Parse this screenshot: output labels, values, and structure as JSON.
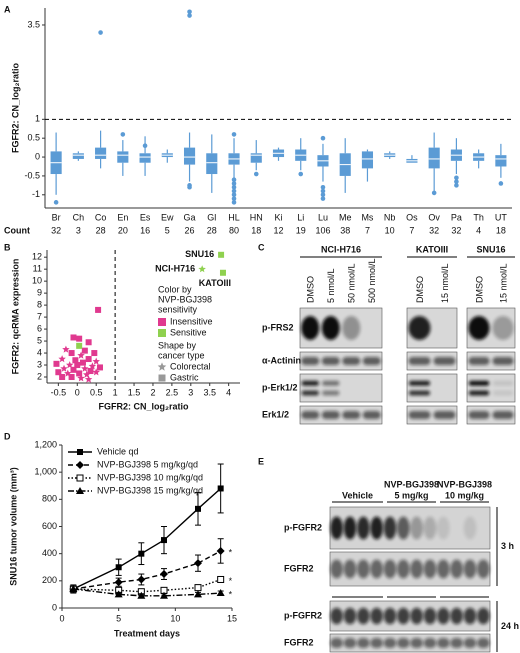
{
  "chart_data": [
    {
      "panel": "A",
      "type": "box",
      "ylabel": "FGFR2: CN_log₂ratio",
      "color": "#5b9bd5",
      "categories": [
        "Br",
        "Ch",
        "Co",
        "En",
        "Es",
        "Ew",
        "Ga",
        "Gl",
        "HL",
        "HN",
        "Ki",
        "Li",
        "Lu",
        "Me",
        "Ms",
        "Nb",
        "Os",
        "Ov",
        "Pa",
        "Th",
        "UT"
      ],
      "count_label": "Count",
      "counts": [
        32,
        3,
        28,
        20,
        16,
        5,
        26,
        28,
        80,
        18,
        12,
        19,
        106,
        38,
        7,
        10,
        7,
        32,
        32,
        4,
        18
      ],
      "boxes": [
        {
          "low": -1.0,
          "q1": -0.45,
          "median": -0.15,
          "q3": 0.15,
          "high": 0.65,
          "outliers": [
            -1.2
          ]
        },
        {
          "low": -0.1,
          "q1": -0.05,
          "median": 0.05,
          "q3": 0.1,
          "high": 0.15,
          "outliers": []
        },
        {
          "low": -0.3,
          "q1": -0.05,
          "median": 0.05,
          "q3": 0.25,
          "high": 0.7,
          "outliers": [
            3.3
          ]
        },
        {
          "low": -0.5,
          "q1": -0.15,
          "median": 0.05,
          "q3": 0.15,
          "high": 0.45,
          "outliers": [
            0.6
          ]
        },
        {
          "low": -0.5,
          "q1": -0.15,
          "median": 0,
          "q3": 0.1,
          "high": 0.55,
          "outliers": [
            0.3
          ]
        },
        {
          "low": -0.15,
          "q1": 0,
          "median": 0.05,
          "q3": 0.1,
          "high": 0.2,
          "outliers": []
        },
        {
          "low": -0.65,
          "q1": -0.2,
          "median": 0,
          "q3": 0.25,
          "high": 0.65,
          "outliers": [
            3.75,
            3.85,
            -0.75,
            -0.8
          ]
        },
        {
          "low": -0.95,
          "q1": -0.45,
          "median": -0.15,
          "q3": 0.1,
          "high": 0.6,
          "outliers": []
        },
        {
          "low": -0.55,
          "q1": -0.2,
          "median": -0.05,
          "q3": 0.1,
          "high": 0.5,
          "outliers": [
            -0.6,
            -0.7,
            -0.8,
            -0.9,
            -1.0,
            -1.1,
            -1.2,
            0.6
          ]
        },
        {
          "low": -0.35,
          "q1": -0.15,
          "median": 0.05,
          "q3": 0.1,
          "high": 0.45,
          "outliers": [
            -0.45
          ]
        },
        {
          "low": -0.1,
          "q1": 0,
          "median": 0.1,
          "q3": 0.2,
          "high": 0.25,
          "outliers": []
        },
        {
          "low": -0.35,
          "q1": -0.1,
          "median": 0.05,
          "q3": 0.2,
          "high": 0.5,
          "outliers": [
            -0.45
          ]
        },
        {
          "low": -0.65,
          "q1": -0.25,
          "median": -0.1,
          "q3": 0.05,
          "high": 0.35,
          "outliers": [
            -0.8,
            -0.9,
            -1.0,
            -1.1,
            0.5
          ]
        },
        {
          "low": -0.95,
          "q1": -0.5,
          "median": -0.2,
          "q3": 0.1,
          "high": 0.5,
          "outliers": []
        },
        {
          "low": -0.65,
          "q1": -0.3,
          "median": -0.05,
          "q3": 0.15,
          "high": 0.2,
          "outliers": []
        },
        {
          "low": -0.05,
          "q1": 0,
          "median": 0.05,
          "q3": 0.1,
          "high": 0.15,
          "outliers": []
        },
        {
          "low": -0.15,
          "q1": -0.15,
          "median": -0.1,
          "q3": -0.05,
          "high": 0.05,
          "outliers": []
        },
        {
          "low": -0.9,
          "q1": -0.3,
          "median": -0.05,
          "q3": 0.25,
          "high": 0.65,
          "outliers": [
            -0.95
          ]
        },
        {
          "low": -0.45,
          "q1": -0.1,
          "median": 0.05,
          "q3": 0.2,
          "high": 0.5,
          "outliers": [
            -0.55,
            -0.65,
            -0.75
          ]
        },
        {
          "low": -0.3,
          "q1": -0.1,
          "median": 0,
          "q3": 0.1,
          "high": 0.2,
          "outliers": []
        },
        {
          "low": -0.55,
          "q1": -0.25,
          "median": -0.05,
          "q3": 0.05,
          "high": 0.35,
          "outliers": [
            -0.7
          ]
        }
      ],
      "ylim": [
        -1.35,
        3.95
      ],
      "yticks": [
        -1,
        -0.5,
        0,
        0.5,
        1,
        3.5
      ],
      "hline": 1
    },
    {
      "panel": "B",
      "type": "scatter",
      "xlabel": "FGFR2: CN_log₂ratio",
      "ylabel": "FGFR2: qcRMA expression",
      "xlim": [
        -0.8,
        4.3
      ],
      "xticks": [
        -0.5,
        0,
        0.5,
        1,
        1.5,
        2,
        2.5,
        3,
        3.5,
        4
      ],
      "ylim": [
        1.5,
        12.6
      ],
      "yticks": [
        2,
        3,
        4,
        5,
        6,
        7,
        8,
        9,
        10,
        11,
        12
      ],
      "vline": 1,
      "legend_title": [
        "Color by",
        "NVP-BGJ398",
        "sensitivity"
      ],
      "series": [
        {
          "name": "Insensitive",
          "color": "#e0398f",
          "x": [
            0.55,
            -0.1,
            0.05,
            0.3,
            -0.3,
            -0.15,
            0.2,
            0.45,
            0.1,
            -0.4,
            -0.05,
            0.3,
            0.5,
            -0.55,
            -0.2,
            0.0,
            0.15,
            0.4,
            -0.35,
            -0.1,
            0.2,
            0.35,
            -0.5,
            -0.25,
            0.05,
            0.25,
            0.5,
            -0.15,
            0.1,
            -0.4,
            0.6,
            0.3
          ],
          "y": [
            7.6,
            5.3,
            5.2,
            4.9,
            4.3,
            4.0,
            4.2,
            4.0,
            3.8,
            3.5,
            3.4,
            3.5,
            3.3,
            3.1,
            3.0,
            3.0,
            3.2,
            2.9,
            2.7,
            2.6,
            2.7,
            2.5,
            2.4,
            2.3,
            2.3,
            2.2,
            2.4,
            2.0,
            1.9,
            2.0,
            2.8,
            1.8
          ],
          "shape": [
            "square",
            "square",
            "square",
            "square",
            "star",
            "square",
            "square",
            "square",
            "star",
            "star",
            "square",
            "square",
            "star",
            "square",
            "star",
            "square",
            "square",
            "star",
            "star",
            "square",
            "star",
            "square",
            "square",
            "star",
            "square",
            "star",
            "star",
            "square",
            "star",
            "square",
            "square",
            "star"
          ]
        },
        {
          "name": "Sensitive",
          "color": "#8fd14f",
          "x": [
            3.8,
            3.3,
            3.85,
            0.05
          ],
          "y": [
            12.2,
            11.0,
            10.7,
            4.6
          ],
          "shape": [
            "square",
            "star",
            "square",
            "square"
          ],
          "labels": [
            "SNU16",
            "NCI-H716",
            "KATOIII",
            null
          ]
        }
      ],
      "shape_legend_title": [
        "Shape by",
        "cancer type"
      ],
      "shape_color": "#999999",
      "shape_legend": [
        {
          "name": "Colorectal",
          "shape": "star"
        },
        {
          "name": "Gastric",
          "shape": "square"
        }
      ]
    },
    {
      "panel": "D",
      "type": "line",
      "xlabel": "Treatment days",
      "ylabel": "SNU16 tumor volume (mm³)",
      "x": [
        1,
        5,
        7,
        9,
        12,
        14
      ],
      "xlim": [
        0,
        15
      ],
      "xticks": [
        0,
        5,
        10,
        15
      ],
      "ylim": [
        0,
        1200
      ],
      "yticks": [
        0,
        200,
        400,
        600,
        800,
        {
          "value": 1000,
          "label": "1,000"
        },
        {
          "value": 1200,
          "label": "1,200"
        }
      ],
      "series": [
        {
          "name": "Vehicle qd",
          "color": "#000000",
          "dash": "solid",
          "marker": "square",
          "values": [
            140,
            300,
            400,
            500,
            730,
            880
          ],
          "errors": [
            30,
            60,
            80,
            100,
            120,
            180
          ]
        },
        {
          "name": "NVP-BGJ398 5 mg/kg/qd",
          "color": "#000000",
          "dash": "dashed",
          "marker": "diamond",
          "values": [
            140,
            190,
            210,
            250,
            330,
            420
          ],
          "errors": [
            20,
            30,
            40,
            40,
            60,
            90
          ],
          "note": "*"
        },
        {
          "name": "NVP-BGJ398 10 mg/kg/qd",
          "color": "#000000",
          "dash": "dotted",
          "marker": "open-square",
          "values": [
            140,
            130,
            120,
            130,
            150,
            210
          ],
          "errors": [
            20,
            20,
            20,
            20,
            20,
            20
          ],
          "note": "*"
        },
        {
          "name": "NVP-BGJ398 15 mg/kg/qd",
          "color": "#000000",
          "dash": "dashdot",
          "marker": "triangle",
          "values": [
            140,
            100,
            90,
            90,
            100,
            110
          ],
          "errors": [
            20,
            15,
            15,
            15,
            15,
            15
          ],
          "note": "*"
        }
      ]
    }
  ],
  "blots": {
    "C": {
      "panel": "C",
      "groups": [
        {
          "name": "NCI-H716",
          "lanes": [
            "DMSO",
            "5 nmol/L",
            "50 nmol/L",
            "500 nmol/L"
          ]
        },
        {
          "name": "KATOIII",
          "lanes": [
            "DMSO",
            "15 nmol/L"
          ]
        },
        {
          "name": "SNU16",
          "lanes": [
            "DMSO",
            "15 nmol/L"
          ]
        }
      ],
      "rows": [
        "p-FRS2",
        "α-Actinin",
        "p-Erk1/2",
        "Erk1/2"
      ]
    },
    "E": {
      "panel": "E",
      "groups": [
        [
          "Vehicle"
        ],
        [
          "NVP-BGJ398",
          "5 mg/kg"
        ],
        [
          "NVP-BGJ398",
          "10 mg/kg"
        ]
      ],
      "sets": [
        {
          "time": "3 h",
          "rows": [
            "p-FGFR2",
            "FGFR2"
          ]
        },
        {
          "time": "24 h",
          "rows": [
            "p-FGFR2",
            "FGFR2"
          ]
        }
      ]
    }
  }
}
